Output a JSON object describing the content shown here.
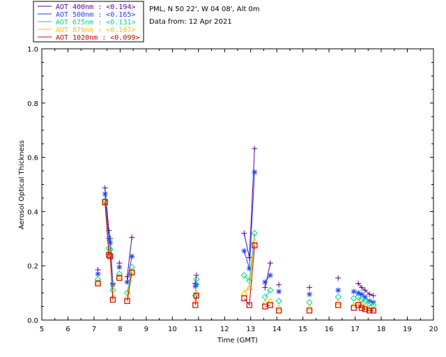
{
  "chart_data": {
    "type": "scatter",
    "ylabel": "Aerosol Optical Thickness",
    "xlabel": "Time (GMT)",
    "xlim": [
      5,
      20
    ],
    "ylim": [
      0.0,
      1.0
    ],
    "xticks": [
      "5",
      "6",
      "7",
      "8",
      "9",
      "10",
      "11",
      "12",
      "13",
      "14",
      "15",
      "16",
      "17",
      "18",
      "19",
      "20"
    ],
    "yticks": [
      "0.0",
      "0.2",
      "0.4",
      "0.6",
      "0.8",
      "1.0"
    ],
    "info_lines": [
      "PML, N 50 22', W 04 08', Alt 0m",
      "Data from: 12 Apr 2021"
    ],
    "series": [
      {
        "name": "AOT  400nm",
        "mean": "<0.194>",
        "legend_text": "AOT  400nm : <0.194>",
        "color": "#5a0096",
        "marker": "plus",
        "x": [
          7.15,
          7.42,
          7.57,
          7.62,
          7.72,
          7.97,
          8.27,
          8.45,
          10.88,
          10.92,
          12.75,
          12.95,
          13.15,
          13.55,
          13.75,
          14.08,
          15.25,
          16.35,
          17.12,
          17.25,
          17.38,
          17.55,
          17.7
        ],
        "y": [
          0.185,
          0.487,
          0.33,
          0.3,
          0.135,
          0.21,
          0.16,
          0.305,
          0.135,
          0.165,
          0.32,
          0.23,
          0.632,
          0.12,
          0.21,
          0.13,
          0.12,
          0.155,
          0.135,
          0.12,
          0.11,
          0.095,
          0.09
        ],
        "groups": [
          [
            0
          ],
          [
            1,
            2,
            3,
            4
          ],
          [
            5
          ],
          [
            6,
            7
          ],
          [
            8,
            9
          ],
          [
            10,
            11,
            12
          ],
          [
            13,
            14
          ],
          [
            15
          ],
          [
            16
          ],
          [
            17
          ],
          [
            18,
            19,
            20,
            21,
            22
          ]
        ]
      },
      {
        "name": "AOT  500nm",
        "mean": "<0.165>",
        "legend_text": "AOT  500nm : <0.165>",
        "color": "#1e3cff",
        "marker": "star",
        "x": [
          7.15,
          7.42,
          7.57,
          7.62,
          7.72,
          7.97,
          8.27,
          8.45,
          10.88,
          10.92,
          12.75,
          12.95,
          13.15,
          13.55,
          13.75,
          14.08,
          15.25,
          16.35,
          16.95,
          17.12,
          17.25,
          17.38,
          17.55,
          17.7
        ],
        "y": [
          0.17,
          0.465,
          0.3,
          0.285,
          0.13,
          0.195,
          0.14,
          0.235,
          0.125,
          0.13,
          0.255,
          0.19,
          0.545,
          0.14,
          0.165,
          0.105,
          0.095,
          0.11,
          0.105,
          0.1,
          0.095,
          0.085,
          0.07,
          0.065
        ],
        "groups": [
          [
            0
          ],
          [
            1,
            2,
            3,
            4
          ],
          [
            5
          ],
          [
            6,
            7
          ],
          [
            8,
            9
          ],
          [
            10,
            11,
            12
          ],
          [
            13,
            14
          ],
          [
            15
          ],
          [
            16
          ],
          [
            17
          ],
          [
            18
          ],
          [
            19,
            20,
            21,
            22,
            23
          ]
        ]
      },
      {
        "name": "AOT  675nm",
        "mean": "<0.131>",
        "legend_text": "AOT  675nm : <0.131>",
        "color": "#00d28c",
        "marker": "diamond",
        "x": [
          7.15,
          7.42,
          7.57,
          7.62,
          7.72,
          7.97,
          8.27,
          8.45,
          10.88,
          10.92,
          12.75,
          12.95,
          13.15,
          13.55,
          13.75,
          14.08,
          15.25,
          16.35,
          16.95,
          17.12,
          17.25,
          17.38,
          17.55,
          17.7
        ],
        "y": [
          0.15,
          0.44,
          0.265,
          0.26,
          0.11,
          0.17,
          0.1,
          0.195,
          0.09,
          0.15,
          0.165,
          0.145,
          0.32,
          0.085,
          0.11,
          0.07,
          0.065,
          0.085,
          0.08,
          0.085,
          0.075,
          0.07,
          0.06,
          0.055
        ],
        "groups": [
          [
            0
          ],
          [
            1,
            2,
            3,
            4
          ],
          [
            5
          ],
          [
            6,
            7
          ],
          [
            8,
            9
          ],
          [
            10,
            11,
            12
          ],
          [
            13,
            14
          ],
          [
            15
          ],
          [
            16
          ],
          [
            17
          ],
          [
            18
          ],
          [
            19,
            20,
            21,
            22,
            23
          ]
        ]
      },
      {
        "name": "AOT  870nm",
        "mean": "<0.107>",
        "legend_text": "AOT  870nm : <0.107>",
        "color": "#ffbe00",
        "marker": "triangle",
        "x": [
          7.15,
          7.42,
          7.57,
          7.62,
          7.72,
          7.97,
          8.27,
          8.45,
          10.88,
          10.92,
          12.75,
          12.95,
          13.15,
          13.55,
          13.75,
          14.08,
          15.25,
          16.35,
          16.95,
          17.12,
          17.25,
          17.38,
          17.55,
          17.7
        ],
        "y": [
          0.14,
          0.43,
          0.25,
          0.24,
          0.085,
          0.16,
          0.085,
          0.18,
          0.07,
          0.1,
          0.1,
          0.12,
          0.29,
          0.065,
          0.07,
          0.045,
          0.045,
          0.065,
          0.055,
          0.065,
          0.055,
          0.05,
          0.04,
          0.04
        ],
        "groups": [
          [
            0
          ],
          [
            1,
            2,
            3,
            4
          ],
          [
            5
          ],
          [
            6,
            7
          ],
          [
            8,
            9
          ],
          [
            10,
            11,
            12
          ],
          [
            13,
            14
          ],
          [
            15
          ],
          [
            16
          ],
          [
            17
          ],
          [
            18
          ],
          [
            19,
            20,
            21,
            22,
            23
          ]
        ]
      },
      {
        "name": "AOT 1020nm",
        "mean": "<0.099>",
        "legend_text": "AOT 1020nm : <0.099>",
        "color": "#c80000",
        "marker": "square",
        "x": [
          7.15,
          7.42,
          7.57,
          7.62,
          7.72,
          7.97,
          8.27,
          8.45,
          10.88,
          10.92,
          12.75,
          12.95,
          13.15,
          13.55,
          13.75,
          14.08,
          15.25,
          16.35,
          16.95,
          17.12,
          17.25,
          17.38,
          17.55,
          17.7
        ],
        "y": [
          0.135,
          0.435,
          0.24,
          0.235,
          0.075,
          0.155,
          0.07,
          0.175,
          0.055,
          0.09,
          0.08,
          0.055,
          0.275,
          0.05,
          0.055,
          0.035,
          0.035,
          0.055,
          0.045,
          0.055,
          0.045,
          0.04,
          0.035,
          0.035
        ],
        "groups": [
          [
            0
          ],
          [
            1,
            2,
            3,
            4
          ],
          [
            5
          ],
          [
            6,
            7
          ],
          [
            8,
            9
          ],
          [
            10,
            11,
            12
          ],
          [
            13,
            14
          ],
          [
            15
          ],
          [
            16
          ],
          [
            17
          ],
          [
            18
          ],
          [
            19,
            20,
            21,
            22,
            23
          ]
        ]
      }
    ]
  }
}
